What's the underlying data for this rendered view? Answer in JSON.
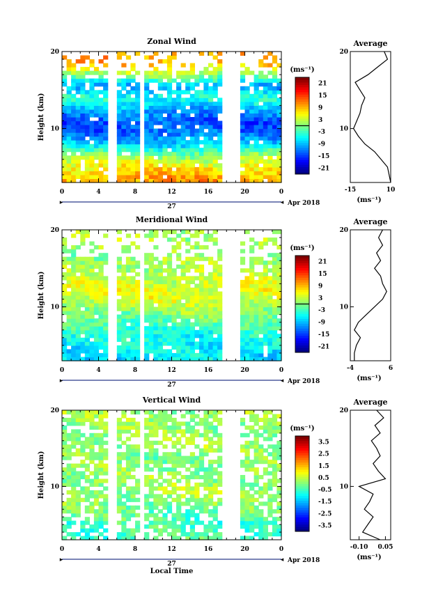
{
  "chart_data": [
    {
      "type": "heatmap",
      "title": "Zonal Wind",
      "ylabel": "Height (km)",
      "ylim": [
        3,
        20
      ],
      "yticks": [
        10,
        20
      ],
      "xlim": [
        0,
        24
      ],
      "xticks": [
        "0",
        "4",
        "8",
        "12",
        "16",
        "20",
        "0"
      ],
      "date_day": "27",
      "date_month": "Apr 2018",
      "data_gaps_hours": [
        [
          5.0,
          6.0
        ],
        [
          8.5,
          8.8
        ],
        [
          17.5,
          19.5
        ]
      ],
      "colorbar": {
        "unit": "(ms⁻¹)",
        "min": -24,
        "max": 24,
        "ticks": [
          "21",
          "15",
          "9",
          "3",
          "-3",
          "-9",
          "-15",
          "-21"
        ],
        "zero_line": true
      },
      "profile_by_height": {
        "heights": [
          3.5,
          5,
          6.5,
          8,
          9.5,
          11,
          12.5,
          14,
          15.5,
          17,
          18.5
        ],
        "values": [
          10,
          7,
          1,
          -8,
          -13,
          -14,
          -10,
          -4,
          -10,
          1,
          10
        ]
      },
      "average": {
        "title": "Average",
        "xlim": [
          -15,
          10
        ],
        "xticks": [
          "-15",
          "10"
        ],
        "xlabel": "(ms⁻¹)",
        "heights": [
          3,
          4,
          5,
          6,
          7,
          8,
          9,
          10,
          11,
          12,
          13,
          14,
          15,
          16,
          17,
          18,
          19,
          20
        ],
        "values": [
          10,
          9,
          8,
          4,
          0,
          -6,
          -10,
          -13,
          -11,
          -9,
          -8,
          -6,
          -9,
          -12,
          -4,
          2,
          8,
          6
        ]
      }
    },
    {
      "type": "heatmap",
      "title": "Meridional Wind",
      "ylabel": "Height (km)",
      "ylim": [
        3,
        20
      ],
      "yticks": [
        10,
        20
      ],
      "xlim": [
        0,
        24
      ],
      "xticks": [
        "0",
        "4",
        "8",
        "12",
        "16",
        "20",
        "0"
      ],
      "date_day": "27",
      "date_month": "Apr 2018",
      "data_gaps_hours": [
        [
          5.0,
          6.0
        ],
        [
          8.5,
          8.8
        ],
        [
          17.5,
          19.5
        ]
      ],
      "colorbar": {
        "unit": "(ms⁻¹)",
        "min": -24,
        "max": 24,
        "ticks": [
          "21",
          "15",
          "9",
          "3",
          "-3",
          "-9",
          "-15",
          "-21"
        ],
        "zero_line": true
      },
      "profile_by_height": {
        "heights": [
          3.5,
          5,
          6.5,
          8,
          9.5,
          11,
          12.5,
          14,
          15.5,
          17,
          18.5
        ],
        "values": [
          -7,
          -6,
          -5,
          -2,
          1,
          4,
          5,
          3,
          2,
          1,
          2
        ]
      },
      "average": {
        "title": "Average",
        "xlim": [
          -4,
          6
        ],
        "xticks": [
          "-4",
          "6"
        ],
        "xlabel": "(ms⁻¹)",
        "heights": [
          3,
          4,
          5,
          6,
          7,
          8,
          9,
          10,
          11,
          12,
          13,
          14,
          15,
          16,
          17,
          18,
          19,
          20
        ],
        "values": [
          -3,
          -3,
          -2.5,
          -1.5,
          -3,
          -2,
          0,
          2,
          4,
          5,
          4,
          3.5,
          2,
          3.5,
          2.5,
          4,
          3,
          4
        ]
      }
    },
    {
      "type": "heatmap",
      "title": "Vertical Wind",
      "ylabel": "Height (km)",
      "ylim": [
        3,
        20
      ],
      "yticks": [
        10,
        20
      ],
      "xlim": [
        0,
        24
      ],
      "xticks": [
        "0",
        "4",
        "8",
        "12",
        "16",
        "20",
        "0"
      ],
      "date_day": "27",
      "date_month": "Apr 2018",
      "xlabel": "Local Time",
      "data_gaps_hours": [
        [
          5.0,
          6.0
        ],
        [
          8.5,
          8.8
        ],
        [
          17.5,
          19.5
        ]
      ],
      "colorbar": {
        "unit": "(ms⁻¹)",
        "min": -4,
        "max": 4,
        "ticks": [
          "3.5",
          "2.5",
          "1.5",
          "0.5",
          "-0.5",
          "-1.5",
          "-2.5",
          "-3.5"
        ],
        "zero_line": false
      },
      "profile_by_height": {
        "heights": [
          3.5,
          5,
          6.5,
          8,
          9.5,
          11,
          12.5,
          14,
          15.5,
          17,
          18.5
        ],
        "values": [
          -0.4,
          -0.5,
          -0.3,
          0.1,
          0.3,
          0.2,
          0.1,
          0.0,
          0.3,
          0.1,
          0.2
        ]
      },
      "average": {
        "title": "Average",
        "xlim": [
          -0.15,
          0.08
        ],
        "xticks": [
          "-0.10",
          "0.05"
        ],
        "xlabel": "(ms⁻¹)",
        "heights": [
          3,
          4,
          5,
          6,
          7,
          8,
          9,
          10,
          11,
          12,
          13,
          14,
          15,
          16,
          17,
          18,
          19,
          20
        ],
        "values": [
          0.02,
          -0.08,
          -0.05,
          -0.02,
          -0.07,
          -0.04,
          -0.02,
          -0.1,
          0.05,
          0.01,
          -0.02,
          0.02,
          0.0,
          -0.03,
          0.02,
          -0.01,
          0.04,
          0.0
        ]
      }
    }
  ]
}
